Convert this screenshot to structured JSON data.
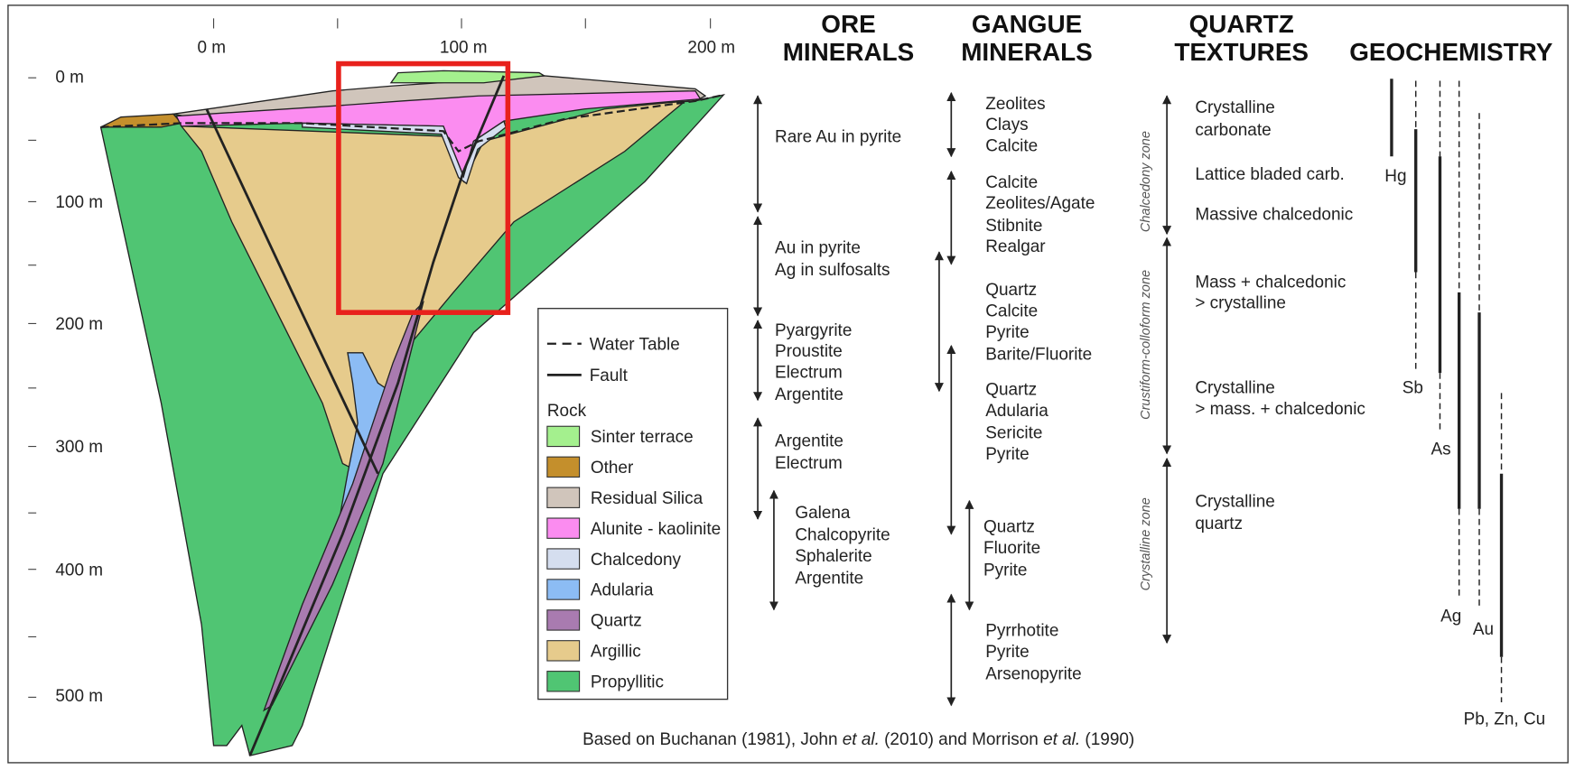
{
  "axes": {
    "distance_labels": [
      "0 m",
      "100 m",
      "200 m"
    ],
    "depth_labels": [
      "0 m",
      "100 m",
      "200 m",
      "300 m",
      "400 m",
      "500 m"
    ]
  },
  "columns": {
    "ore_minerals": {
      "title": [
        "ORE",
        "MINERALS"
      ],
      "groups": [
        [
          "Rare Au in pyrite"
        ],
        [
          "Au in pyrite",
          "Ag in sulfosalts"
        ],
        [
          "Pyargyrite",
          "Proustite",
          "Electrum",
          "Argentite"
        ],
        [
          "Argentite",
          "Electrum"
        ],
        [
          "Galena",
          "Chalcopyrite",
          "Sphalerite",
          "Argentite"
        ]
      ]
    },
    "gangue_minerals": {
      "title": [
        "GANGUE",
        "MINERALS"
      ],
      "groups": [
        [
          "Zeolites",
          "Clays",
          "Calcite"
        ],
        [
          "Calcite",
          "Zeolites/Agate",
          "Stibnite",
          "Realgar"
        ],
        [
          "Quartz",
          "Calcite",
          "Pyrite",
          "Barite/Fluorite"
        ],
        [
          "Quartz",
          "Adularia",
          "Sericite",
          "Pyrite"
        ],
        [
          "Quartz",
          "Fluorite",
          "Pyrite"
        ],
        [
          "Pyrrhotite",
          "Pyrite",
          "Arsenopyrite"
        ]
      ]
    },
    "quartz_textures": {
      "title": [
        "QUARTZ",
        "TEXTURES"
      ],
      "zones": [
        "Chalcedony zone",
        "Crustiform-colloform zone",
        "Crystalline zone"
      ],
      "items": [
        [
          "Crystalline",
          "carbonate"
        ],
        [
          "Lattice bladed carb."
        ],
        [
          "Massive chalcedonic"
        ],
        [
          "Mass + chalcedonic",
          "> crystalline"
        ],
        [
          "Crystalline",
          "> mass. + chalcedonic"
        ],
        [
          "Crystalline",
          "quartz"
        ]
      ]
    },
    "geochemistry": {
      "title": [
        "GEOCHEMISTRY"
      ],
      "elements": [
        "Hg",
        "Sb",
        "As",
        "Ag",
        "Au",
        "Pb, Zn, Cu"
      ]
    }
  },
  "legend": {
    "water_table": "Water Table",
    "fault": "Fault",
    "rock_heading": "Rock",
    "rocks": [
      "Sinter terrace",
      "Other",
      "Residual Silica",
      "Alunite - kaolinite",
      "Chalcedony",
      "Adularia",
      "Quartz",
      "Argillic",
      "Propyllitic"
    ]
  },
  "footer": [
    "Based on Buchanan (1981), John ",
    "et al.",
    " (2010) and Morrison ",
    "et al.",
    " (1990)"
  ]
}
